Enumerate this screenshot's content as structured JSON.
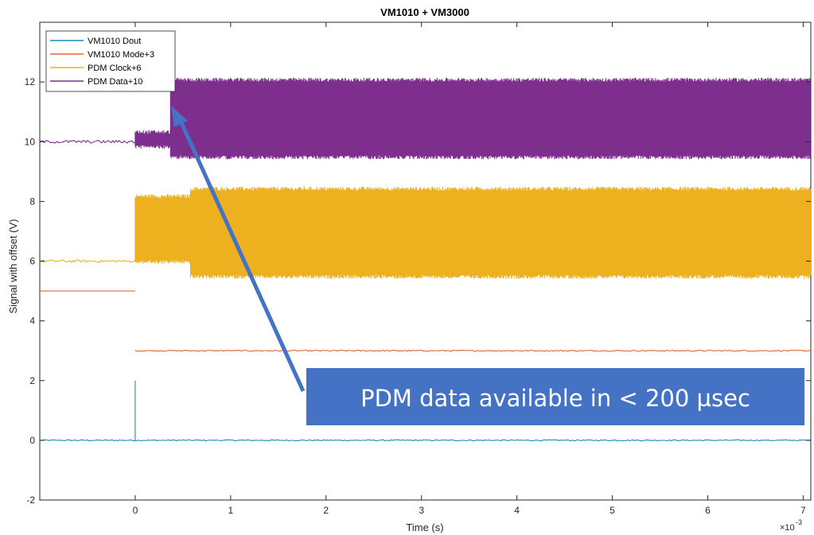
{
  "chart_data": {
    "type": "line",
    "title": "VM1010 + VM3000",
    "xlabel": "Time (s)",
    "ylabel": "Signal with offset (V)",
    "x_exponent_label": "×10",
    "x_exponent_power": "-3",
    "xlim": [
      -0.001,
      0.00708
    ],
    "ylim": [
      -2,
      14
    ],
    "x_ticks": [
      0,
      0.001,
      0.002,
      0.003,
      0.004,
      0.005,
      0.006,
      0.007
    ],
    "x_tick_labels": [
      "0",
      "1",
      "2",
      "3",
      "4",
      "5",
      "6",
      "7"
    ],
    "y_ticks": [
      -2,
      0,
      2,
      4,
      6,
      8,
      10,
      12
    ],
    "y_tick_labels": [
      "-2",
      "0",
      "2",
      "4",
      "6",
      "8",
      "10",
      "12"
    ],
    "grid": false,
    "legend_position": "top-left",
    "series": [
      {
        "name": "VM1010 Dout",
        "color": "#1f8ac0",
        "segments": [
          {
            "x_start": -0.001,
            "x_end": 0.00708,
            "baseline": 0,
            "amplitude": 0.02
          },
          {
            "x_start": 0.0,
            "x_end": 0.0,
            "spike_min": 0,
            "spike_max": 2.0
          }
        ]
      },
      {
        "name": "VM1010 Mode+3",
        "color": "#e0663a",
        "segments": [
          {
            "x_start": -0.001,
            "x_end": 0.0,
            "baseline": 5.0,
            "amplitude": 0
          },
          {
            "x_start": 0.0,
            "x_end": 0.00708,
            "baseline": 3.0,
            "amplitude": 0.02
          }
        ]
      },
      {
        "name": "PDM Clock+6",
        "color": "#edb120",
        "segments": [
          {
            "x_start": -0.001,
            "x_end": 0.0,
            "baseline": 6.0,
            "amplitude": 0.04
          },
          {
            "x_start": 0.0,
            "x_end": 0.00058,
            "low": 6.0,
            "high": 8.15
          },
          {
            "x_start": 0.00058,
            "x_end": 0.00708,
            "low": 5.5,
            "high": 8.4
          }
        ]
      },
      {
        "name": "PDM Data+10",
        "color": "#7e2f8e",
        "segments": [
          {
            "x_start": -0.001,
            "x_end": 0.0,
            "baseline": 10.0,
            "amplitude": 0.05
          },
          {
            "x_start": 0.0,
            "x_end": 0.00037,
            "low": 9.85,
            "high": 10.3
          },
          {
            "x_start": 0.00037,
            "x_end": 0.00708,
            "low": 9.5,
            "high": 12.05
          }
        ]
      }
    ],
    "annotations": [
      {
        "text": "PDM data available in < 200 µsec",
        "box_color": "#4472c4"
      }
    ]
  }
}
